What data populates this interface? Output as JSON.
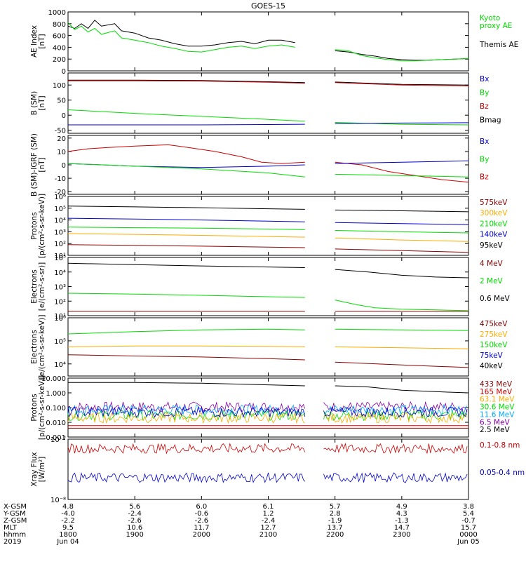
{
  "title": "GOES-15",
  "colors": {
    "black": "#000000",
    "green": "#00dd00",
    "red": "#cc0000",
    "darkred": "#8b0000",
    "blue": "#0000cc",
    "orange": "#ffaa00",
    "lightblue": "#00aaff",
    "purple": "#8800aa",
    "yellow": "#dddd00",
    "cyan": "#00cccc"
  },
  "xaxis": {
    "ticks": [
      {
        "XGSM": "4.8",
        "YGSM": "-4.0",
        "ZGSM": "-2.2",
        "MLT": "9.5",
        "hhmm": "1800",
        "date": "Jun 04"
      },
      {
        "XGSM": "5.6",
        "YGSM": "-2.4",
        "ZGSM": "-2.6",
        "MLT": "10.6",
        "hhmm": "1900",
        "date": ""
      },
      {
        "XGSM": "6.0",
        "YGSM": "-0.6",
        "ZGSM": "-2.6",
        "MLT": "11.7",
        "hhmm": "2000",
        "date": ""
      },
      {
        "XGSM": "6.1",
        "YGSM": "1.2",
        "ZGSM": "-2.4",
        "MLT": "12.7",
        "hhmm": "2100",
        "date": ""
      },
      {
        "XGSM": "5.7",
        "YGSM": "2.8",
        "ZGSM": "-1.9",
        "MLT": "13.7",
        "hhmm": "2200",
        "date": ""
      },
      {
        "XGSM": "4.9",
        "YGSM": "4.3",
        "ZGSM": "-1.3",
        "MLT": "14.7",
        "hhmm": "2300",
        "date": ""
      },
      {
        "XGSM": "3.8",
        "YGSM": "5.4",
        "ZGSM": "-0.7",
        "MLT": "15.7",
        "hhmm": "0000",
        "date": "Jun 05"
      }
    ],
    "row_labels": [
      "X-GSM",
      "Y-GSM",
      "Z-GSM",
      "MLT",
      "hhmm",
      "2019"
    ]
  },
  "chart_data": [
    {
      "type": "line",
      "ylabel": "AE Index\n[nT]",
      "ylim": [
        0,
        1000
      ],
      "yticks": [
        "0",
        "200",
        "400",
        "600",
        "800",
        "1000"
      ],
      "yticks_v": [
        0,
        200,
        400,
        600,
        800,
        1000
      ],
      "legend": [
        {
          "name": "Kyoto\nproxy AE",
          "color": "#00dd00"
        },
        {
          "name": "Themis AE",
          "color": "#000000"
        }
      ],
      "series": [
        {
          "name": "Themis AE",
          "color": "#000000",
          "x": [
            0,
            0.1,
            0.2,
            0.3,
            0.4,
            0.5,
            0.7,
            0.8,
            1.0,
            1.2,
            1.4,
            1.6,
            1.8,
            2.0,
            2.2,
            2.4,
            2.6,
            2.8,
            3.0,
            3.2,
            3.4,
            3.6,
            3.8,
            4.0,
            4.2,
            4.4,
            4.6,
            4.8,
            5.0,
            5.2,
            5.4,
            5.6,
            5.8,
            6.0
          ],
          "y": [
            760,
            720,
            800,
            720,
            860,
            760,
            800,
            680,
            640,
            560,
            520,
            460,
            420,
            420,
            440,
            480,
            500,
            460,
            520,
            520,
            480,
            420,
            380,
            340,
            320,
            280,
            250,
            210,
            190,
            180,
            180,
            190,
            200,
            210
          ]
        },
        {
          "name": "Kyoto proxy AE",
          "color": "#00dd00",
          "x": [
            0,
            0.1,
            0.2,
            0.3,
            0.4,
            0.5,
            0.7,
            0.8,
            1.0,
            1.2,
            1.4,
            1.6,
            1.8,
            2.0,
            2.2,
            2.4,
            2.6,
            2.8,
            3.0,
            3.2,
            3.4,
            3.6,
            3.8,
            4.0,
            4.2,
            4.4,
            4.6,
            4.8,
            5.0,
            5.2,
            5.4,
            5.6,
            5.8,
            6.0
          ],
          "y": [
            820,
            700,
            760,
            660,
            720,
            620,
            680,
            560,
            520,
            480,
            420,
            380,
            330,
            320,
            360,
            400,
            420,
            380,
            420,
            440,
            400,
            380,
            360,
            360,
            340,
            260,
            220,
            190,
            170,
            170,
            180,
            190,
            200,
            210
          ]
        }
      ]
    },
    {
      "type": "line",
      "ylabel": "B (SM)\n[nT]",
      "ylim": [
        -60,
        140
      ],
      "yticks": [
        "-50",
        "0",
        "50",
        "100"
      ],
      "yticks_v": [
        -50,
        0,
        50,
        100
      ],
      "legend": [
        {
          "name": "Bx",
          "color": "#0000cc"
        },
        {
          "name": "By",
          "color": "#00dd00"
        },
        {
          "name": "Bz",
          "color": "#cc0000"
        },
        {
          "name": "Bmag",
          "color": "#000000"
        }
      ],
      "series": [
        {
          "name": "Bmag",
          "color": "#000000",
          "x": [
            0,
            1,
            2,
            3,
            3.55,
            3.8,
            4,
            5,
            6
          ],
          "y": [
            116,
            116,
            115,
            111,
            108,
            null,
            110,
            102,
            100
          ]
        },
        {
          "name": "Bz",
          "color": "#cc0000",
          "x": [
            0,
            1,
            2,
            3,
            3.55,
            3.8,
            4,
            5,
            6
          ],
          "y": [
            114,
            114,
            113,
            109,
            106,
            null,
            108,
            100,
            97
          ]
        },
        {
          "name": "By",
          "color": "#00dd00",
          "x": [
            0,
            1,
            2,
            3,
            3.55,
            3.8,
            4,
            5,
            6
          ],
          "y": [
            18,
            6,
            -4,
            -14,
            -20,
            null,
            -24,
            -30,
            -32
          ]
        },
        {
          "name": "Bx",
          "color": "#0000cc",
          "x": [
            0,
            1,
            2,
            3,
            3.55,
            3.8,
            4,
            5,
            6
          ],
          "y": [
            -32,
            -32,
            -32,
            -31,
            -30,
            null,
            -28,
            -26,
            -25
          ]
        }
      ]
    },
    {
      "type": "line",
      "ylabel": "B (SM)-IGRF (SM)\n[nT]",
      "ylim": [
        -22,
        22
      ],
      "yticks": [
        "-20",
        "-10",
        "0",
        "10",
        "20"
      ],
      "yticks_v": [
        -20,
        -10,
        0,
        10,
        20
      ],
      "legend": [
        {
          "name": "Bx",
          "color": "#0000cc"
        },
        {
          "name": "By",
          "color": "#00dd00"
        },
        {
          "name": "Bz",
          "color": "#cc0000"
        }
      ],
      "series": [
        {
          "name": "Bz",
          "color": "#cc0000",
          "x": [
            0,
            0.3,
            0.6,
            1.0,
            1.5,
            1.8,
            2.2,
            2.6,
            2.9,
            3.2,
            3.55,
            3.8,
            4.0,
            4.4,
            4.8,
            5.2,
            5.6,
            6.0
          ],
          "y": [
            10,
            12,
            13,
            14,
            15,
            13,
            10,
            6,
            2,
            1,
            2,
            null,
            2,
            0,
            -5,
            -8,
            -11,
            -13
          ]
        },
        {
          "name": "Bx",
          "color": "#0000cc",
          "x": [
            0,
            1,
            2,
            3,
            3.55,
            3.8,
            4,
            5,
            6
          ],
          "y": [
            1,
            -1,
            -2,
            -1,
            0,
            null,
            1,
            2,
            3
          ]
        },
        {
          "name": "By",
          "color": "#00dd00",
          "x": [
            0,
            1,
            2,
            3,
            3.55,
            3.8,
            4,
            5,
            6
          ],
          "y": [
            1,
            -1,
            -3,
            -6,
            -9,
            null,
            -7,
            -8,
            -9
          ]
        }
      ]
    },
    {
      "type": "line",
      "log": true,
      "ylabel": "Protons\n[p/(cm²-s-sr-keV)]",
      "ylim": [
        10,
        1000000
      ],
      "yticks": [
        "10¹",
        "10²",
        "10³",
        "10⁴",
        "10⁵",
        "10⁶"
      ],
      "yticks_v": [
        10,
        100,
        1000,
        10000,
        100000,
        1000000
      ],
      "legend": [
        {
          "name": "575keV",
          "color": "#8b0000"
        },
        {
          "name": "300keV",
          "color": "#ffaa00"
        },
        {
          "name": "210keV",
          "color": "#00dd00"
        },
        {
          "name": "140keV",
          "color": "#0000cc"
        },
        {
          "name": "95keV",
          "color": "#000000"
        }
      ],
      "series": [
        {
          "name": "95keV",
          "color": "#000000",
          "x": [
            0,
            1,
            2,
            3,
            3.55,
            3.8,
            4,
            5,
            6
          ],
          "y": [
            150000,
            130000,
            110000,
            90000,
            80000,
            null,
            70000,
            60000,
            50000
          ]
        },
        {
          "name": "140keV",
          "color": "#0000cc",
          "x": [
            0,
            1,
            2,
            3,
            3.55,
            3.8,
            4,
            5,
            6
          ],
          "y": [
            14000,
            12000,
            10000,
            8000,
            7000,
            null,
            6000,
            5000,
            4000
          ]
        },
        {
          "name": "210keV",
          "color": "#00dd00",
          "x": [
            0,
            1,
            2,
            3,
            3.55,
            3.8,
            4,
            5,
            6
          ],
          "y": [
            2500,
            2200,
            2000,
            1700,
            1500,
            null,
            1300,
            1000,
            800
          ]
        },
        {
          "name": "300keV",
          "color": "#ffaa00",
          "x": [
            0,
            1,
            2,
            3,
            3.55,
            3.8,
            4,
            5,
            6
          ],
          "y": [
            700,
            600,
            500,
            400,
            350,
            null,
            300,
            200,
            150
          ]
        },
        {
          "name": "575keV",
          "color": "#8b0000",
          "x": [
            0,
            1,
            2,
            3,
            3.55,
            3.8,
            4,
            5,
            6
          ],
          "y": [
            80,
            70,
            60,
            50,
            45,
            null,
            35,
            25,
            18
          ]
        }
      ]
    },
    {
      "type": "line",
      "log": true,
      "ylabel": "Electrons\n[e/(cm²-s-sr)]",
      "ylim": [
        10,
        100000
      ],
      "yticks": [
        "10¹",
        "10²",
        "10³",
        "10⁴",
        "10⁵"
      ],
      "yticks_v": [
        10,
        100,
        1000,
        10000,
        100000
      ],
      "legend": [
        {
          "name": "4 MeV",
          "color": "#8b0000"
        },
        {
          "name": "2 MeV",
          "color": "#00dd00"
        },
        {
          "name": "0.6 MeV",
          "color": "#000000"
        }
      ],
      "series": [
        {
          "name": "0.6 MeV",
          "color": "#000000",
          "x": [
            0,
            1,
            2,
            3,
            3.55,
            3.8,
            4,
            4.5,
            5,
            5.5,
            6
          ],
          "y": [
            40000,
            32000,
            26000,
            22000,
            20000,
            null,
            15000,
            10000,
            6000,
            4500,
            4000
          ]
        },
        {
          "name": "2 MeV",
          "color": "#00dd00",
          "x": [
            0,
            1,
            2,
            3,
            3.55,
            3.8,
            4,
            4.3,
            4.6,
            5,
            5.5,
            6
          ],
          "y": [
            350,
            300,
            250,
            200,
            180,
            null,
            120,
            60,
            35,
            28,
            25,
            22
          ]
        },
        {
          "name": "4 MeV",
          "color": "#8b0000",
          "x": [
            0,
            1,
            2,
            3,
            3.55,
            3.8,
            4,
            5,
            6
          ],
          "y": [
            20,
            20,
            20,
            20,
            20,
            null,
            20,
            20,
            20
          ]
        }
      ]
    },
    {
      "type": "line",
      "log": true,
      "ylabel": "Electrons\n[e/(cm²-s-sr-keV)]",
      "ylim": [
        3000,
        1000000
      ],
      "yticks": [
        "10⁴",
        "10⁵",
        "10⁶"
      ],
      "yticks_v": [
        10000,
        100000,
        1000000
      ],
      "legend": [
        {
          "name": "475keV",
          "color": "#8b0000"
        },
        {
          "name": "275keV",
          "color": "#ffaa00"
        },
        {
          "name": "150keV",
          "color": "#00dd00"
        },
        {
          "name": "75keV",
          "color": "#0000cc"
        },
        {
          "name": "40keV",
          "color": "#000000"
        }
      ],
      "series": [
        {
          "name": "150keV",
          "color": "#00dd00",
          "x": [
            0,
            1,
            2,
            3,
            3.55,
            3.8,
            4,
            5,
            6
          ],
          "y": [
            200000,
            250000,
            300000,
            320000,
            300000,
            null,
            320000,
            300000,
            280000
          ]
        },
        {
          "name": "275keV",
          "color": "#ffaa00",
          "x": [
            0,
            1,
            2,
            3,
            3.55,
            3.8,
            4,
            5,
            6
          ],
          "y": [
            55000,
            60000,
            60000,
            58000,
            55000,
            null,
            55000,
            50000,
            45000
          ]
        },
        {
          "name": "475keV",
          "color": "#8b0000",
          "x": [
            0,
            1,
            2,
            3,
            3.55,
            3.8,
            4,
            5,
            6
          ],
          "y": [
            25000,
            22000,
            20000,
            17000,
            15000,
            null,
            12000,
            9000,
            7000
          ]
        }
      ]
    },
    {
      "type": "line",
      "log": true,
      "ylabel": "Protons\n[p/(cm²-s-sr-keV)]",
      "ylim": [
        0.001,
        10
      ],
      "yticks": [
        "0.001",
        "0.010",
        "0.100",
        "1.000",
        "10.000"
      ],
      "yticks_v": [
        0.001,
        0.01,
        0.1,
        1,
        10
      ],
      "legend": [
        {
          "name": "433 MeV",
          "color": "#8b0000"
        },
        {
          "name": "165 MeV",
          "color": "#cc0000"
        },
        {
          "name": "63.1 MeV",
          "color": "#ffaa00"
        },
        {
          "name": "30.6 MeV",
          "color": "#00dd00"
        },
        {
          "name": "11.6 MeV",
          "color": "#00aaff"
        },
        {
          "name": "6.5 MeV",
          "color": "#8800aa"
        },
        {
          "name": "2.5 MeV",
          "color": "#000000"
        }
      ],
      "series": [
        {
          "name": "2.5 MeV",
          "color": "#000000",
          "x": [
            0,
            1,
            2,
            3,
            3.55,
            3.8,
            4,
            4.5,
            5,
            5.5,
            6
          ],
          "y": [
            5,
            5,
            4.5,
            3.5,
            3,
            null,
            3,
            2.5,
            1.5,
            1.2,
            1
          ]
        },
        {
          "name": "433 MeV",
          "color": "#8b0000",
          "x": [
            0,
            6
          ],
          "y": [
            0.004,
            0.004
          ]
        },
        {
          "name": "165 MeV",
          "color": "#cc0000",
          "x": [
            0,
            6
          ],
          "y": [
            0.006,
            0.006
          ]
        }
      ],
      "noisy": [
        {
          "name": "6.5 MeV",
          "color": "#8800aa",
          "base": 0.11
        },
        {
          "name": "11.6 MeV",
          "color": "#00aaff",
          "base": 0.07
        },
        {
          "name": "30.6 MeV",
          "color": "#00dd00",
          "base": 0.03
        },
        {
          "name": "63.1 MeV",
          "color": "#ffaa00",
          "base": 0.02
        },
        {
          "name": "blue",
          "color": "#0000cc",
          "base": 0.05
        }
      ]
    },
    {
      "type": "line",
      "log": true,
      "ylabel": "Xray Flux\n[W/m²]",
      "ylim": [
        1e-08,
        1e-07
      ],
      "yticks": [
        "10⁻⁸",
        "10⁻⁷"
      ],
      "yticks_v": [
        1e-08,
        1e-07
      ],
      "legend": [
        {
          "name": "0.1-0.8 nm",
          "color": "#cc0000"
        },
        {
          "name": "0.05-0.4 nm",
          "color": "#0000cc"
        }
      ],
      "series": [],
      "noisy": [
        {
          "name": "0.1-0.8 nm",
          "color": "#cc0000",
          "base": 7e-08,
          "amp": 0.08
        },
        {
          "name": "0.05-0.4 nm",
          "color": "#0000cc",
          "base": 2.3e-08,
          "amp": 0.08
        }
      ]
    }
  ]
}
